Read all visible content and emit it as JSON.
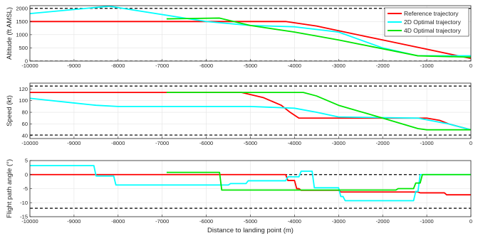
{
  "chart_data": [
    {
      "type": "line",
      "ylabel": "Altitude (ft AMSL)",
      "xlabel": "",
      "xlim": [
        -10000,
        0
      ],
      "ylim": [
        0,
        2100
      ],
      "xticks": [
        -10000,
        -9000,
        -8000,
        -7000,
        -6000,
        -5000,
        -4000,
        -3000,
        -2000,
        -1000,
        0
      ],
      "yticks": [
        0,
        500,
        1000,
        1500,
        2000
      ],
      "xtick_labels": [
        "-10000",
        "-9000",
        "-8000",
        "-7000",
        "-6000",
        "-5000",
        "-4000",
        "-3000",
        "-2000",
        "-1000",
        "0"
      ],
      "ytick_labels": [
        "0",
        "500",
        "1000",
        "1500",
        "2000"
      ],
      "grid": true,
      "legend": {
        "position": "top-right"
      },
      "reference_lines": [
        {
          "y": 2000,
          "style": "dashed",
          "color": "#000000"
        },
        {
          "y": 0,
          "style": "dashed",
          "color": "#000000"
        }
      ],
      "series": [
        {
          "name": "Reference trajectory",
          "color": "#ff0000",
          "x": [
            -10000,
            -4200,
            -3500,
            -3000,
            -2000,
            -1000,
            0
          ],
          "y": [
            1500,
            1500,
            1330,
            1150,
            800,
            450,
            100
          ]
        },
        {
          "name": "2D Optimal trajectory",
          "color": "#00ffff",
          "x": [
            -10000,
            -8200,
            -6000,
            -5000,
            -4000,
            -3000,
            -2500,
            -2000,
            -1200,
            -900,
            0
          ],
          "y": [
            1800,
            2080,
            1500,
            1350,
            1300,
            1100,
            800,
            500,
            200,
            200,
            200
          ]
        },
        {
          "name": "4D Optimal trajectory",
          "color": "#00e600",
          "x": [
            -6900,
            -5700,
            -5000,
            -4000,
            -3000,
            -1200,
            0
          ],
          "y": [
            1600,
            1630,
            1350,
            1100,
            800,
            200,
            150
          ]
        }
      ]
    },
    {
      "type": "line",
      "ylabel": "Speed (kt)",
      "xlabel": "",
      "xlim": [
        -10000,
        0
      ],
      "ylim": [
        35,
        130
      ],
      "xticks": [
        -10000,
        -9000,
        -8000,
        -7000,
        -6000,
        -5000,
        -4000,
        -3000,
        -2000,
        -1000,
        0
      ],
      "yticks": [
        40,
        60,
        80,
        100,
        120
      ],
      "xtick_labels": [
        "-10000",
        "-9000",
        "-8000",
        "-7000",
        "-6000",
        "-5000",
        "-4000",
        "-3000",
        "-2000",
        "-1000",
        "0"
      ],
      "ytick_labels": [
        "40",
        "60",
        "80",
        "100",
        "120"
      ],
      "grid": true,
      "reference_lines": [
        {
          "y": 125,
          "style": "dashed",
          "color": "#000000"
        },
        {
          "y": 41,
          "style": "dashed",
          "color": "#000000"
        }
      ],
      "series": [
        {
          "name": "Reference trajectory",
          "color": "#ff0000",
          "x": [
            -10000,
            -5200,
            -4700,
            -4300,
            -4100,
            -3900,
            -3000,
            -1200,
            -1000,
            -700,
            -500,
            0
          ],
          "y": [
            114,
            114,
            105,
            92,
            80,
            70,
            70,
            70,
            70,
            66,
            60,
            50
          ]
        },
        {
          "name": "2D Optimal trajectory",
          "color": "#00ffff",
          "x": [
            -10000,
            -9000,
            -8500,
            -8000,
            -6000,
            -5000,
            -4000,
            -3500,
            -3000,
            -1200,
            -500,
            0
          ],
          "y": [
            104,
            96,
            92,
            90,
            90,
            90,
            87,
            80,
            72,
            70,
            60,
            50
          ]
        },
        {
          "name": "4D Optimal trajectory",
          "color": "#00e600",
          "x": [
            -6900,
            -3800,
            -3500,
            -3000,
            -2000,
            -1200,
            -1000,
            0
          ],
          "y": [
            114,
            114,
            108,
            92,
            70,
            52,
            50,
            50
          ]
        }
      ]
    },
    {
      "type": "line",
      "ylabel": "Flight path angle (°)",
      "xlabel": "Distance to landing point (m)",
      "xlim": [
        -10000,
        0
      ],
      "ylim": [
        -15,
        5
      ],
      "xticks": [
        -10000,
        -9000,
        -8000,
        -7000,
        -6000,
        -5000,
        -4000,
        -3000,
        -2000,
        -1000,
        0
      ],
      "yticks": [
        -15,
        -10,
        -5,
        0,
        5
      ],
      "xtick_labels": [
        "-10000",
        "-9000",
        "-8000",
        "-7000",
        "-6000",
        "-5000",
        "-4000",
        "-3000",
        "-2000",
        "-1000",
        "0"
      ],
      "ytick_labels": [
        "-15",
        "-10",
        "-5",
        "0",
        "5"
      ],
      "grid": true,
      "reference_lines": [
        {
          "y": 0,
          "style": "dashed",
          "color": "#000000"
        },
        {
          "y": -12,
          "style": "dashed",
          "color": "#000000"
        }
      ],
      "series": [
        {
          "name": "Reference trajectory",
          "color": "#ff0000",
          "x": [
            -10000,
            -4200,
            -4150,
            -4000,
            -3950,
            -3900,
            -3850,
            -3000,
            -2950,
            -1200,
            -1150,
            -600,
            -550,
            0
          ],
          "y": [
            0,
            0,
            -2.1,
            -2.1,
            -5,
            -5,
            -5.6,
            -5.6,
            -6.2,
            -6.2,
            -6.5,
            -6.5,
            -7.2,
            -7.2
          ]
        },
        {
          "name": "2D Optimal trajectory",
          "color": "#00ffff",
          "x": [
            -10000,
            -8550,
            -8500,
            -8100,
            -8050,
            -5500,
            -5450,
            -5100,
            -5050,
            -4200,
            -4150,
            -3900,
            -3850,
            -3600,
            -3550,
            -3000,
            -2950,
            -2900,
            -2850,
            -1300,
            -1250,
            -1200,
            -1150,
            0
          ],
          "y": [
            3.2,
            3.2,
            -0.5,
            -0.5,
            -3.7,
            -3.7,
            -3.2,
            -3.2,
            -2.2,
            -2.2,
            -0.8,
            -0.8,
            1.2,
            1.2,
            -4.7,
            -4.7,
            -7.8,
            -7.8,
            -9.3,
            -9.3,
            -6,
            -6,
            0,
            0
          ]
        },
        {
          "name": "4D Optimal trajectory",
          "color": "#00e600",
          "x": [
            -6900,
            -5700,
            -5650,
            -1700,
            -1650,
            -1300,
            -1250,
            -1150,
            -1100,
            0
          ],
          "y": [
            0.8,
            0.8,
            -5.5,
            -5.5,
            -5,
            -5,
            -3,
            -3,
            0,
            0
          ]
        }
      ]
    }
  ]
}
